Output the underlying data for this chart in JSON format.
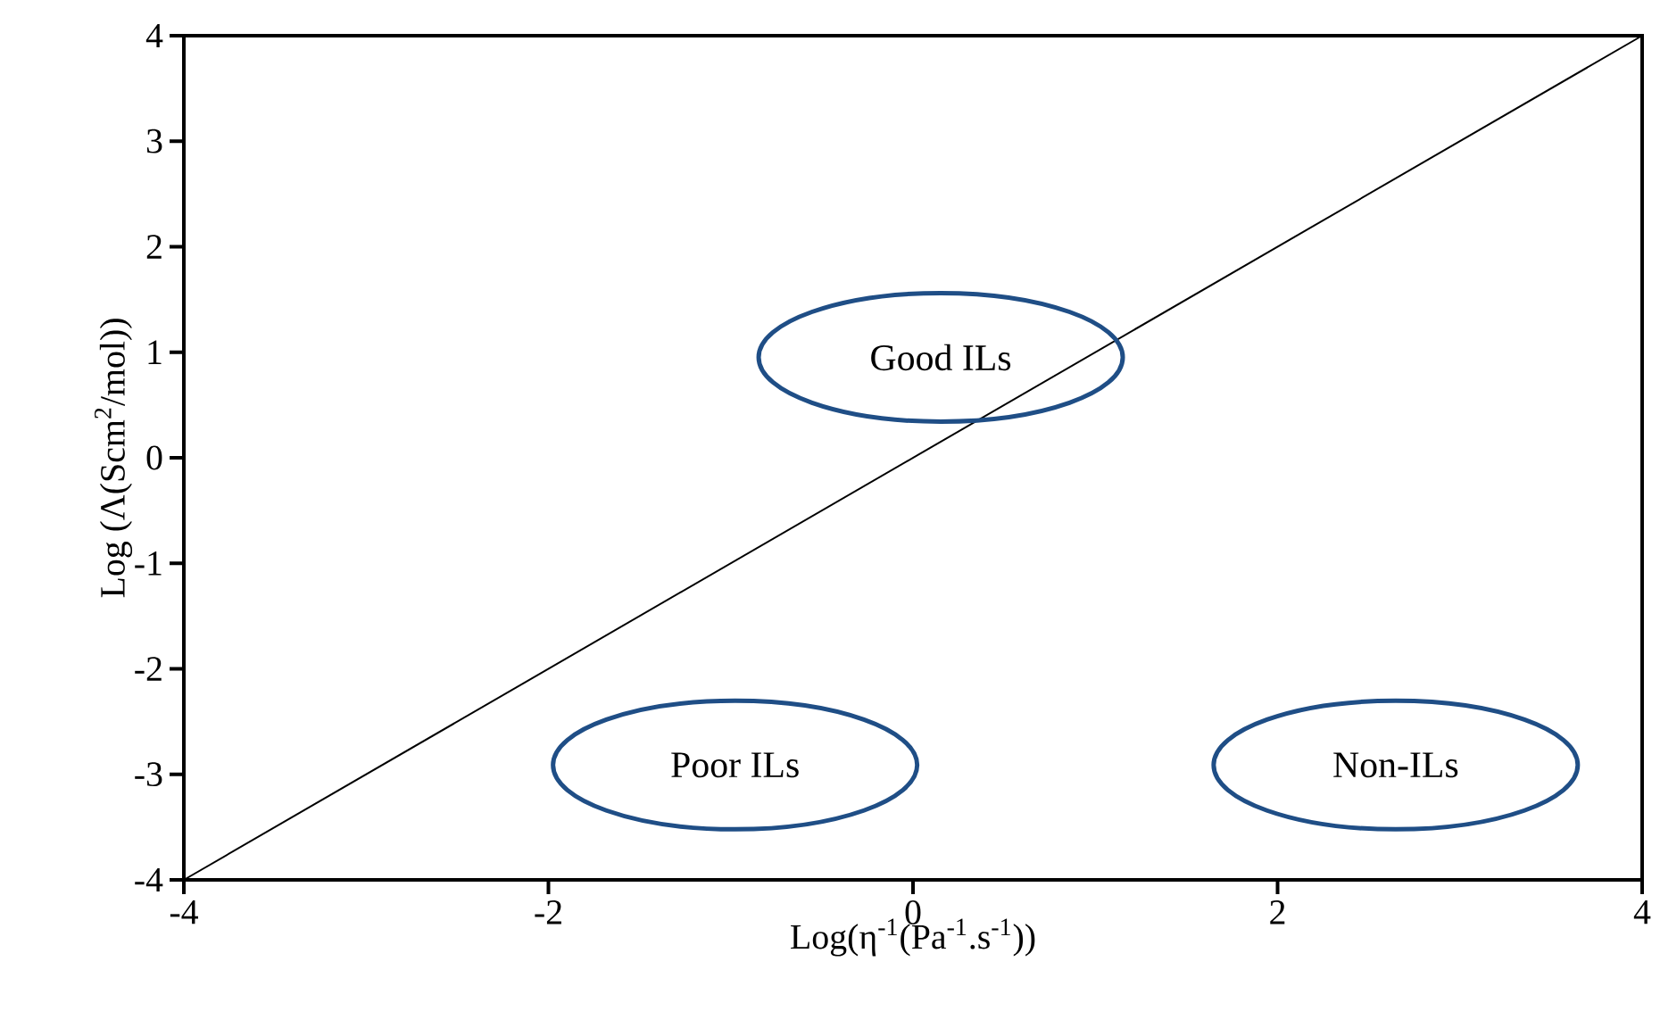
{
  "chart_data": {
    "type": "line",
    "xlabel": "Log(η$^{-1}$(Pa$^{-1}$.s$^{-1}$))",
    "ylabel": "Log (Λ(Scm$^{2}$/mol))",
    "x": [
      -4,
      4
    ],
    "values": [
      -4,
      4
    ],
    "color": "#000000",
    "xlim": [
      -4,
      4
    ],
    "ylim": [
      -4,
      4
    ],
    "xticks": [
      -4,
      -2,
      0,
      2,
      4
    ],
    "yticks": [
      -4,
      -3,
      -2,
      -1,
      0,
      1,
      2,
      3,
      4
    ],
    "grid": false,
    "marker": "none",
    "line_style": "solid",
    "annotations": [
      "Good ILs",
      "Poor ILs",
      "Non-ILs"
    ]
  }
}
